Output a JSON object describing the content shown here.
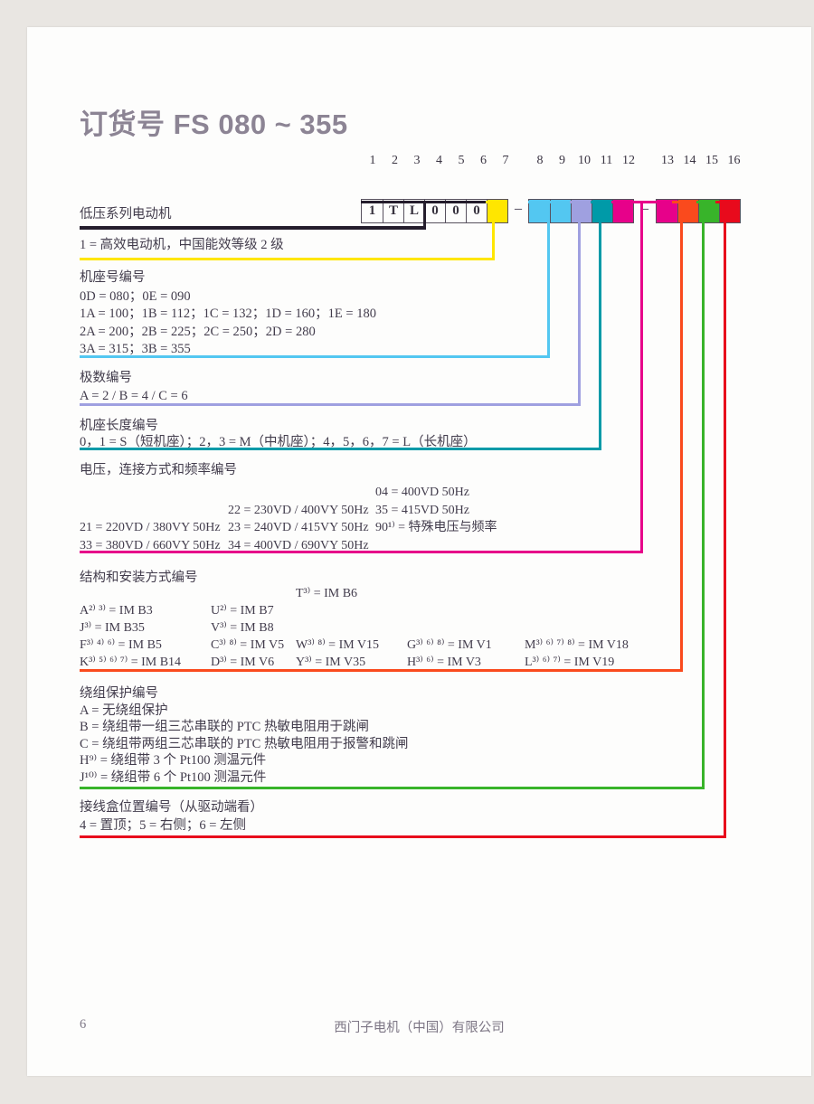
{
  "page": {
    "title": "订货号 FS 080 ~ 355"
  },
  "footer": {
    "page_number": "6",
    "company": "西门子电机（中国）有限公司"
  },
  "colors": {
    "background": "#e9e6e2",
    "page": "#fdfdfc",
    "text": "#423c4c",
    "title": "#8c8494",
    "line_black": "#241d2c",
    "yellow": "#ffe600",
    "cyan": "#53c7f1",
    "lavender": "#9fa0e0",
    "teal": "#009aa8",
    "magenta": "#e7018a",
    "orange": "#fa4a1d",
    "green": "#38b42a",
    "red": "#e80a1c",
    "box_border": "#57515e"
  },
  "order_code": {
    "separator": "–",
    "groups": [
      {
        "name": "code-block-1",
        "cells": [
          {
            "label": "1",
            "text": "1",
            "color": "page"
          },
          {
            "label": "2",
            "text": "T",
            "color": "page"
          },
          {
            "label": "3",
            "text": "L",
            "color": "page"
          },
          {
            "label": "4",
            "text": "0",
            "color": "page"
          },
          {
            "label": "5",
            "text": "0",
            "color": "page"
          },
          {
            "label": "6",
            "text": "0",
            "color": "page"
          },
          {
            "label": "7",
            "text": "",
            "color": "yellow"
          }
        ]
      },
      {
        "name": "code-block-2",
        "cells": [
          {
            "label": "8",
            "text": "",
            "color": "cyan"
          },
          {
            "label": "9",
            "text": "",
            "color": "cyan"
          },
          {
            "label": "10",
            "text": "",
            "color": "lavender"
          },
          {
            "label": "11",
            "text": "",
            "color": "teal"
          },
          {
            "label": "12",
            "text": "",
            "color": "magenta"
          }
        ]
      },
      {
        "name": "code-block-3",
        "cells": [
          {
            "label": "13",
            "text": "",
            "color": "magenta"
          },
          {
            "label": "14",
            "text": "",
            "color": "orange"
          },
          {
            "label": "15",
            "text": "",
            "color": "green"
          },
          {
            "label": "16",
            "text": "",
            "color": "red"
          }
        ]
      }
    ]
  },
  "sections": [
    {
      "id": "series",
      "color": "line_black",
      "heading": "低压系列电动机",
      "lines": []
    },
    {
      "id": "efficiency",
      "color": "yellow",
      "heading": "",
      "lines": [
        "1 = 高效电动机，中国能效等级 2 级"
      ]
    },
    {
      "id": "frame-size",
      "color": "cyan",
      "heading": "机座号编号",
      "lines": [
        "0D = 080；0E = 090",
        "1A = 100；1B = 112；1C = 132；1D = 160；1E = 180",
        "2A = 200；2B = 225；2C = 250；2D = 280",
        "3A = 315；3B = 355"
      ]
    },
    {
      "id": "poles",
      "color": "lavender",
      "heading": "极数编号",
      "lines": [
        "A = 2 / B = 4 / C = 6"
      ]
    },
    {
      "id": "frame-length",
      "color": "teal",
      "heading": "机座长度编号",
      "lines": [
        "0，1 = S（短机座）；2，3 = M（中机座）；4，5，6，7 = L（长机座）"
      ]
    },
    {
      "id": "voltage",
      "color": "magenta",
      "heading": "电压，连接方式和频率编号",
      "grid": {
        "rows": [
          [
            "",
            "",
            "04 = 400VD 50Hz"
          ],
          [
            "",
            "22 = 230VD / 400VY 50Hz",
            "35 = 415VD 50Hz"
          ],
          [
            "21 = 220VD / 380VY 50Hz",
            "23 = 240VD / 415VY 50Hz",
            "90¹⁾ = 特殊电压与频率"
          ],
          [
            "33 = 380VD / 660VY 50Hz",
            "34 = 400VD / 690VY 50Hz",
            ""
          ]
        ]
      }
    },
    {
      "id": "mounting",
      "color": "orange",
      "heading": "结构和安装方式编号",
      "grid": {
        "rows": [
          [
            "",
            "",
            "T³⁾ = IM B6",
            "",
            ""
          ],
          [
            "A²⁾ ³⁾ = IM B3",
            "U²⁾ = IM B7",
            "",
            "",
            ""
          ],
          [
            "J³⁾ = IM B35",
            "V³⁾ = IM B8",
            "",
            "",
            ""
          ],
          [
            "F³⁾ ⁴⁾ ⁶⁾ = IM B5",
            "C³⁾ ⁸⁾ = IM V5",
            "W³⁾ ⁸⁾ = IM V15",
            "G³⁾ ⁶⁾ ⁸⁾ = IM V1",
            "M³⁾ ⁶⁾ ⁷⁾ ⁸⁾ = IM V18"
          ],
          [
            "K³⁾ ⁵⁾ ⁶⁾ ⁷⁾ = IM B14",
            "D³⁾ = IM V6",
            "Y³⁾ = IM V35",
            "H³⁾ ⁶⁾ = IM V3",
            "L³⁾ ⁶⁾ ⁷⁾ = IM V19"
          ]
        ]
      }
    },
    {
      "id": "winding-protection",
      "color": "green",
      "heading": "绕组保护编号",
      "lines": [
        "A = 无绕组保护",
        "B = 绕组带一组三芯串联的 PTC 热敏电阻用于跳闸",
        "C = 绕组带两组三芯串联的 PTC 热敏电阻用于报警和跳闸",
        "H⁹⁾ = 绕组带 3 个 Pt100 测温元件",
        "J¹⁰⁾ = 绕组带 6 个 Pt100 测温元件"
      ]
    },
    {
      "id": "terminal-box",
      "color": "red",
      "heading": "接线盒位置编号（从驱动端看）",
      "lines": [
        "4 = 置顶；5 = 右侧；6 = 左侧"
      ]
    }
  ]
}
